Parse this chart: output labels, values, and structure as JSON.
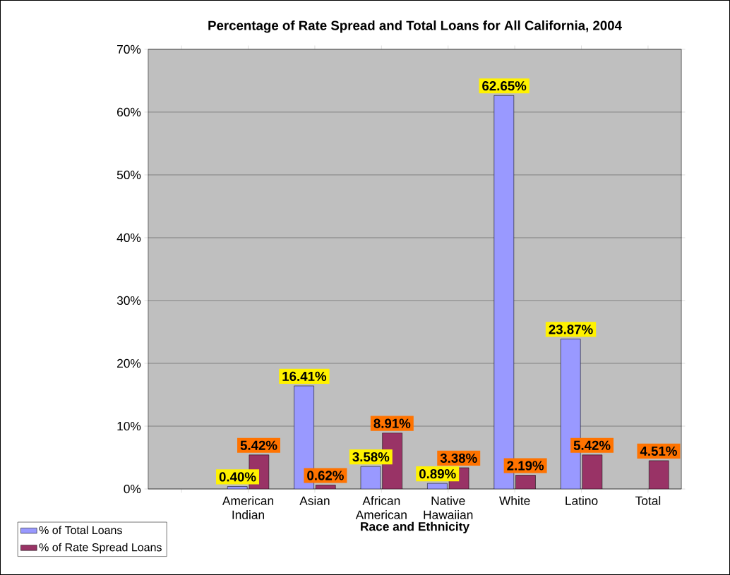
{
  "chart_data": {
    "type": "bar",
    "title": "Percentage of Rate Spread and Total Loans for All California, 2004",
    "xlabel": "Race and Ethnicity",
    "categories": [
      null,
      "American Indian",
      "Asian",
      "African American",
      "Native Hawaiian",
      "White",
      "Latino",
      "Total"
    ],
    "series": [
      {
        "name": "% of Total Loans",
        "color": "#9999ff",
        "values": [
          null,
          0.4,
          16.41,
          3.58,
          0.89,
          62.65,
          23.87,
          null
        ],
        "value_labels": [
          null,
          "0.40%",
          "16.41%",
          "3.58%",
          "0.89%",
          "62.65%",
          "23.87%",
          null
        ]
      },
      {
        "name": "% of Rate Spread Loans",
        "color": "#993366",
        "values": [
          null,
          5.42,
          0.62,
          8.91,
          3.38,
          2.19,
          5.42,
          4.51
        ],
        "value_labels": [
          null,
          "5.42%",
          "0.62%",
          "8.91%",
          "3.38%",
          "2.19%",
          "5.42%",
          "4.51%"
        ]
      }
    ],
    "ylim": [
      0,
      70
    ],
    "yticks": [
      {
        "value": 0,
        "label": "0%"
      },
      {
        "value": 10,
        "label": "10%"
      },
      {
        "value": 20,
        "label": "20%"
      },
      {
        "value": 30,
        "label": "30%"
      },
      {
        "value": 40,
        "label": "40%"
      },
      {
        "value": 50,
        "label": "50%"
      },
      {
        "value": 60,
        "label": "60%"
      },
      {
        "value": 70,
        "label": "70%"
      }
    ],
    "grid": "y",
    "legend": "bottom left"
  }
}
